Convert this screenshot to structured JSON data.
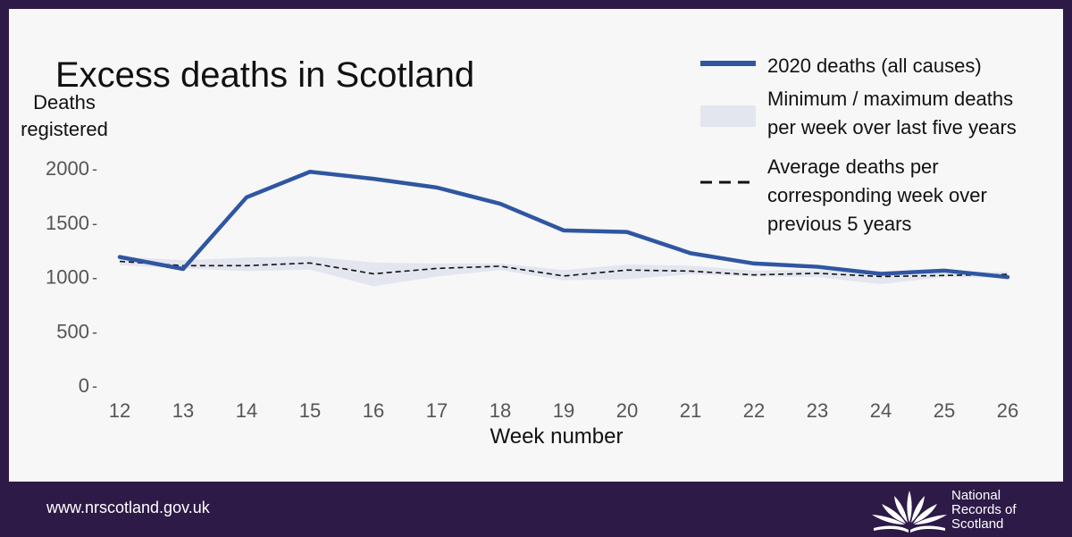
{
  "colors": {
    "frame": "#2d1a47",
    "background": "#f7f7f7",
    "line_2020": "#2f56a1",
    "band": "#e3e6ef",
    "average": "#111111",
    "text": "#111111",
    "axis_text": "#555555"
  },
  "chart_data": {
    "type": "line",
    "title": "Excess deaths in Scotland",
    "ylabel": "Deaths registered",
    "xlabel": "Week number",
    "x": [
      12,
      13,
      14,
      15,
      16,
      17,
      18,
      19,
      20,
      21,
      22,
      23,
      24,
      25,
      26
    ],
    "ylim": [
      0,
      2000
    ],
    "xlim": [
      12,
      26
    ],
    "yticks": [
      0,
      500,
      1000,
      1500,
      2000
    ],
    "series": [
      {
        "name": "2020 deaths (all causes)",
        "kind": "line",
        "values": [
          1180,
          1070,
          1730,
          1965,
          1900,
          1820,
          1670,
          1425,
          1410,
          1215,
          1120,
          1090,
          1025,
          1055,
          995
        ]
      },
      {
        "name": "Minimum / maximum deaths per week over last five years",
        "kind": "band",
        "min": [
          1105,
          1075,
          1050,
          1065,
          910,
          1000,
          1060,
          965,
          975,
          1020,
          1000,
          995,
          930,
          995,
          990
        ],
        "max": [
          1185,
          1150,
          1175,
          1185,
          1130,
          1120,
          1120,
          1060,
          1110,
          1100,
          1055,
          1060,
          1050,
          1040,
          1045
        ]
      },
      {
        "name": "Average deaths per corresponding week over previous 5 years",
        "kind": "dashed",
        "values": [
          1140,
          1100,
          1100,
          1125,
          1025,
          1075,
          1095,
          1005,
          1060,
          1050,
          1015,
          1030,
          1000,
          1010,
          1020
        ]
      }
    ],
    "legend": {
      "placement": "top-right",
      "entries": [
        {
          "lines": [
            "2020 deaths (all causes)"
          ]
        },
        {
          "lines": [
            "Minimum / maximum deaths",
            "per week over last five years"
          ]
        },
        {
          "lines": [
            "Average deaths per",
            "corresponding week over",
            "previous 5 years"
          ]
        }
      ]
    }
  },
  "footer": {
    "url": "www.nrscotland.gov.uk",
    "logo_lines": [
      "National",
      "Records of",
      "Scotland"
    ]
  }
}
